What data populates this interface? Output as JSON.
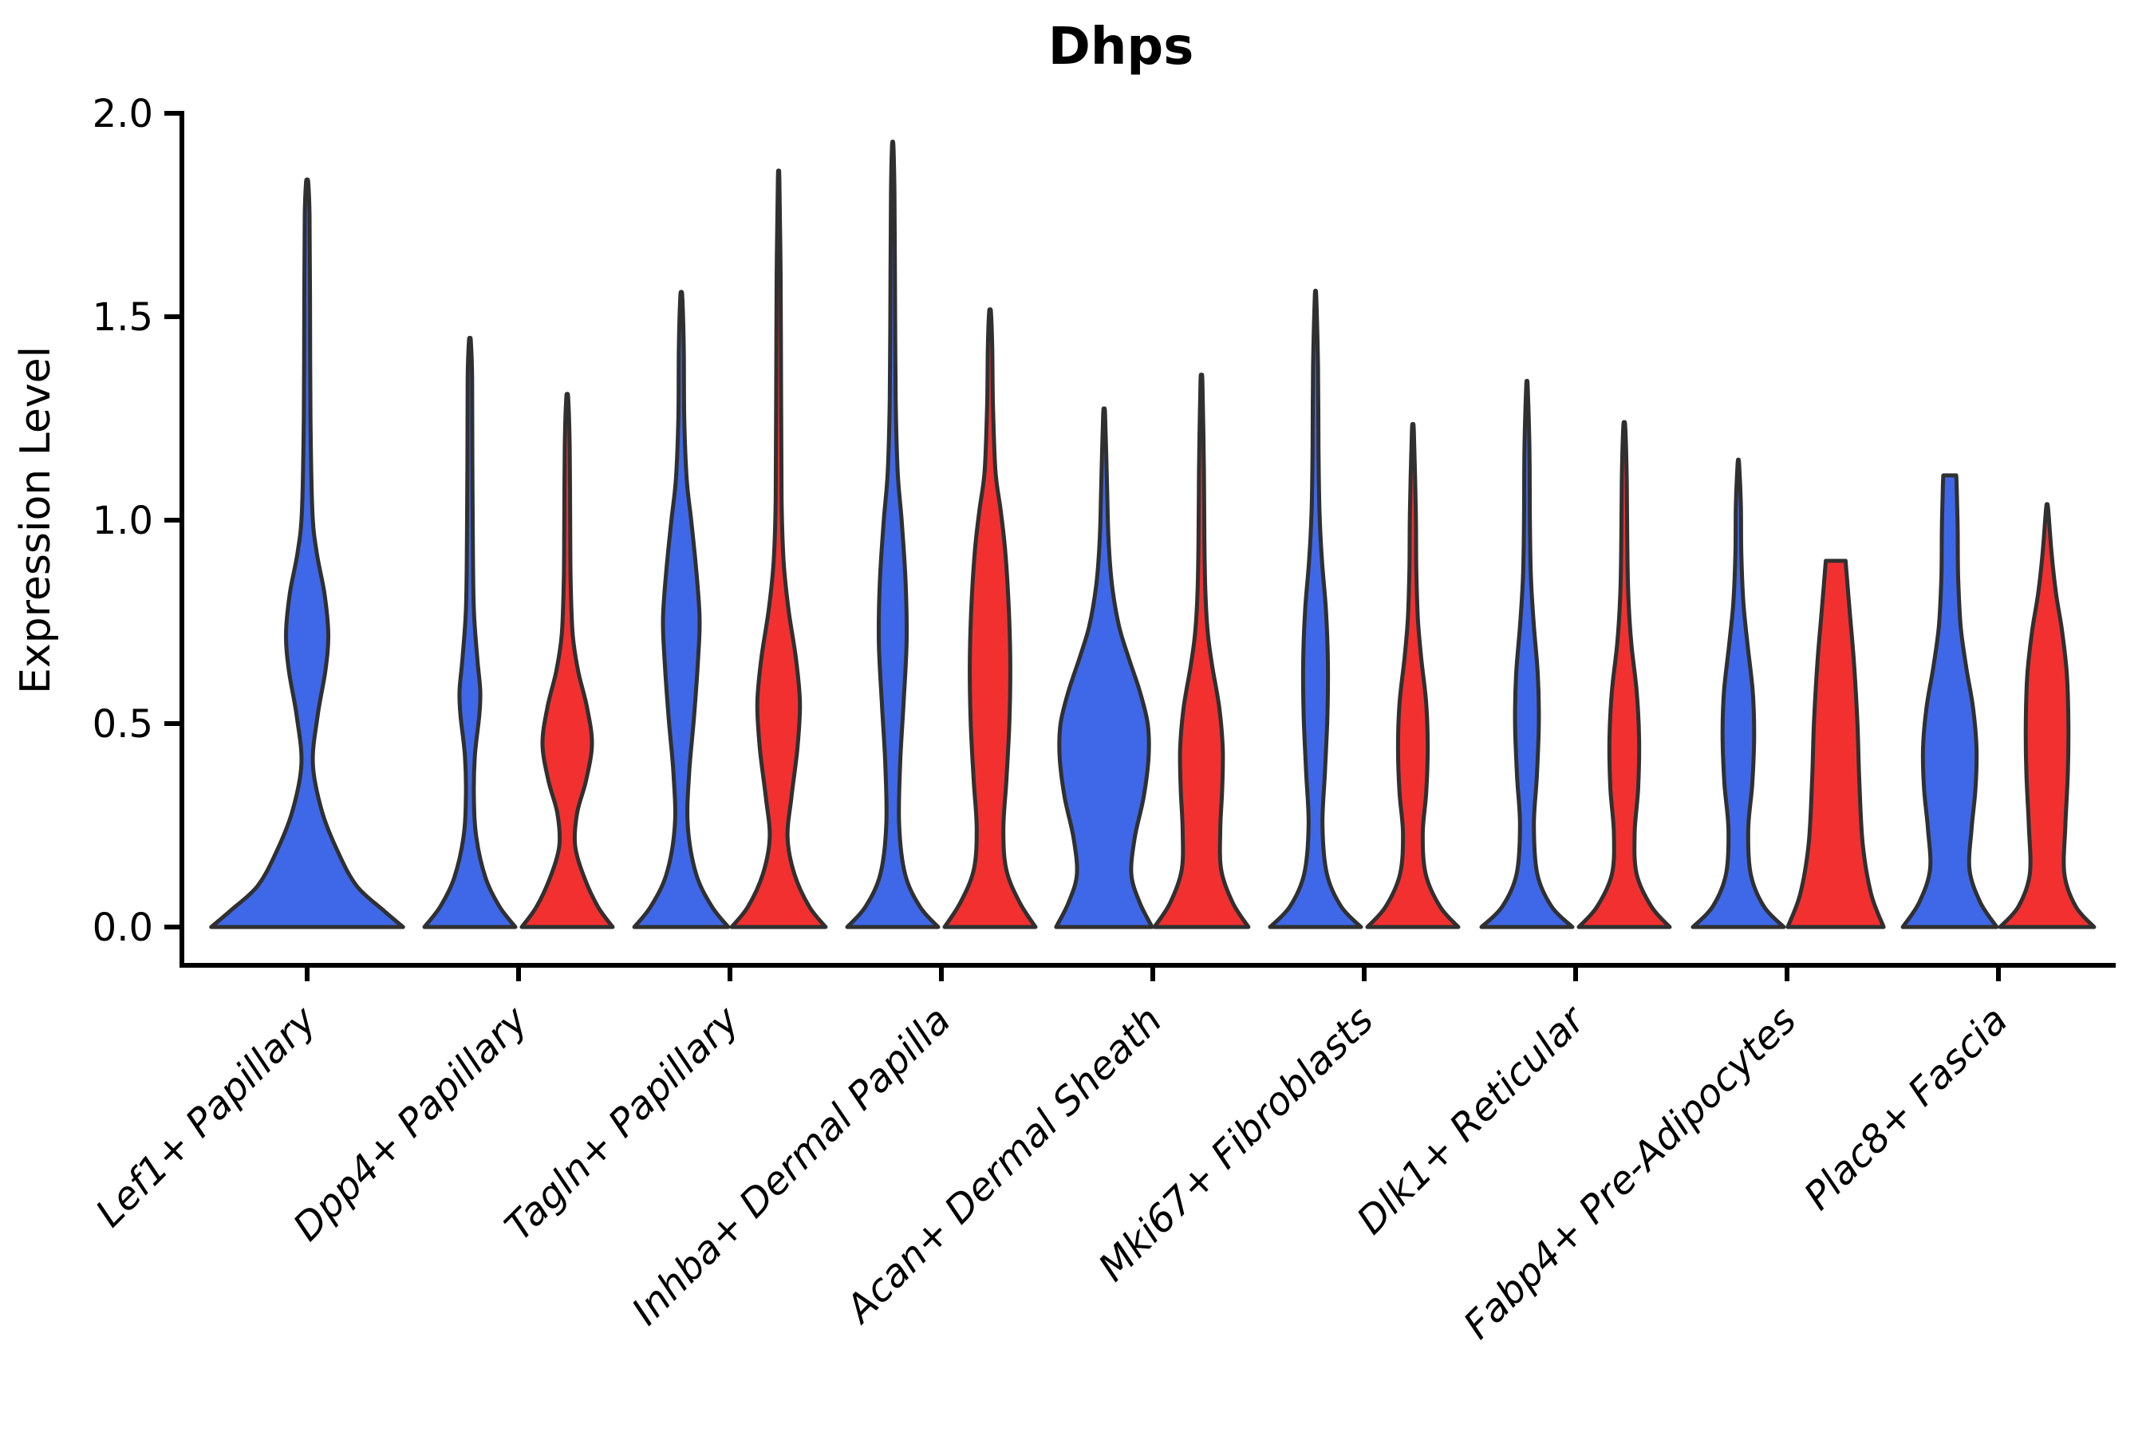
{
  "figure": {
    "background": "#ffffff"
  },
  "chart_data": {
    "type": "violin",
    "title": "Dhps",
    "xlabel": "",
    "ylabel": "Expression Level",
    "ylim": [
      0,
      2.0
    ],
    "yticks": [
      "0.0",
      "0.5",
      "1.0",
      "1.5",
      "2.0"
    ],
    "ytick_values": [
      0.0,
      0.5,
      1.0,
      1.5,
      2.0
    ],
    "grid": "off",
    "legend_position": "none",
    "outline_color": "#303030",
    "series": [
      {
        "id": "blue",
        "color": "#3E68E8"
      },
      {
        "id": "red",
        "color": "#F23030"
      }
    ],
    "categories": [
      "Lef1+ Papillary",
      "Dpp4+ Papillary",
      "Tagln+ Papillary",
      "Inhba+ Dermal Papilla",
      "Acan+ Dermal Sheath",
      "Mki67+ Fibroblasts",
      "Dlk1+ Reticular",
      "Fabp4+ Pre-Adipocytes",
      "Plac8+ Fascia"
    ],
    "violins": [
      {
        "category": "Lef1+ Papillary",
        "series": "blue",
        "max": 1.83,
        "width_scale": 1.94,
        "clipped": false,
        "profile": [
          [
            0.0,
            1.0
          ],
          [
            0.04,
            0.8
          ],
          [
            0.1,
            0.52
          ],
          [
            0.18,
            0.33
          ],
          [
            0.28,
            0.16
          ],
          [
            0.4,
            0.06
          ],
          [
            0.52,
            0.11
          ],
          [
            0.63,
            0.19
          ],
          [
            0.72,
            0.22
          ],
          [
            0.82,
            0.18
          ],
          [
            0.92,
            0.1
          ],
          [
            1.02,
            0.055
          ],
          [
            1.25,
            0.035
          ],
          [
            1.55,
            0.03
          ],
          [
            1.75,
            0.025
          ],
          [
            1.83,
            0.012
          ]
        ]
      },
      {
        "category": "Dpp4+ Papillary",
        "series": "blue",
        "max": 1.44,
        "width_scale": 1.0,
        "clipped": false,
        "profile": [
          [
            0.0,
            0.92
          ],
          [
            0.05,
            0.6
          ],
          [
            0.12,
            0.32
          ],
          [
            0.22,
            0.13
          ],
          [
            0.32,
            0.08
          ],
          [
            0.42,
            0.1
          ],
          [
            0.52,
            0.19
          ],
          [
            0.58,
            0.21
          ],
          [
            0.66,
            0.15
          ],
          [
            0.78,
            0.08
          ],
          [
            0.95,
            0.06
          ],
          [
            1.15,
            0.05
          ],
          [
            1.35,
            0.045
          ],
          [
            1.44,
            0.02
          ]
        ]
      },
      {
        "category": "Dpp4+ Papillary",
        "series": "red",
        "max": 1.3,
        "width_scale": 1.0,
        "clipped": false,
        "profile": [
          [
            0.0,
            0.92
          ],
          [
            0.05,
            0.62
          ],
          [
            0.12,
            0.35
          ],
          [
            0.2,
            0.16
          ],
          [
            0.28,
            0.2
          ],
          [
            0.36,
            0.38
          ],
          [
            0.45,
            0.5
          ],
          [
            0.54,
            0.4
          ],
          [
            0.63,
            0.22
          ],
          [
            0.72,
            0.11
          ],
          [
            0.85,
            0.07
          ],
          [
            1.0,
            0.06
          ],
          [
            1.18,
            0.05
          ],
          [
            1.3,
            0.02
          ]
        ]
      },
      {
        "category": "Tagln+ Papillary",
        "series": "blue",
        "max": 1.55,
        "width_scale": 1.0,
        "clipped": false,
        "profile": [
          [
            0.0,
            0.95
          ],
          [
            0.05,
            0.62
          ],
          [
            0.13,
            0.3
          ],
          [
            0.25,
            0.13
          ],
          [
            0.38,
            0.16
          ],
          [
            0.52,
            0.26
          ],
          [
            0.66,
            0.34
          ],
          [
            0.76,
            0.37
          ],
          [
            0.88,
            0.3
          ],
          [
            1.0,
            0.2
          ],
          [
            1.1,
            0.11
          ],
          [
            1.25,
            0.06
          ],
          [
            1.42,
            0.05
          ],
          [
            1.55,
            0.02
          ]
        ]
      },
      {
        "category": "Tagln+ Papillary",
        "series": "red",
        "max": 1.84,
        "width_scale": 1.0,
        "clipped": false,
        "profile": [
          [
            0.0,
            0.95
          ],
          [
            0.05,
            0.62
          ],
          [
            0.13,
            0.32
          ],
          [
            0.22,
            0.18
          ],
          [
            0.32,
            0.26
          ],
          [
            0.44,
            0.38
          ],
          [
            0.55,
            0.43
          ],
          [
            0.66,
            0.35
          ],
          [
            0.78,
            0.2
          ],
          [
            0.9,
            0.1
          ],
          [
            1.05,
            0.06
          ],
          [
            1.3,
            0.05
          ],
          [
            1.6,
            0.04
          ],
          [
            1.84,
            0.015
          ]
        ]
      },
      {
        "category": "Inhba+ Dermal Papilla",
        "series": "blue",
        "max": 1.92,
        "width_scale": 1.0,
        "clipped": false,
        "profile": [
          [
            0.0,
            0.92
          ],
          [
            0.05,
            0.55
          ],
          [
            0.13,
            0.25
          ],
          [
            0.25,
            0.13
          ],
          [
            0.4,
            0.15
          ],
          [
            0.55,
            0.22
          ],
          [
            0.7,
            0.28
          ],
          [
            0.85,
            0.26
          ],
          [
            1.0,
            0.18
          ],
          [
            1.12,
            0.1
          ],
          [
            1.3,
            0.06
          ],
          [
            1.6,
            0.045
          ],
          [
            1.8,
            0.035
          ],
          [
            1.92,
            0.015
          ]
        ]
      },
      {
        "category": "Inhba+ Dermal Papilla",
        "series": "red",
        "max": 1.51,
        "width_scale": 1.0,
        "clipped": false,
        "profile": [
          [
            0.0,
            0.92
          ],
          [
            0.06,
            0.6
          ],
          [
            0.14,
            0.33
          ],
          [
            0.24,
            0.27
          ],
          [
            0.36,
            0.33
          ],
          [
            0.5,
            0.39
          ],
          [
            0.64,
            0.41
          ],
          [
            0.78,
            0.38
          ],
          [
            0.92,
            0.31
          ],
          [
            1.02,
            0.22
          ],
          [
            1.12,
            0.11
          ],
          [
            1.28,
            0.06
          ],
          [
            1.42,
            0.045
          ],
          [
            1.51,
            0.02
          ]
        ]
      },
      {
        "category": "Acan+ Dermal Sheath",
        "series": "blue",
        "max": 1.26,
        "width_scale": 1.0,
        "clipped": false,
        "profile": [
          [
            0.0,
            0.97
          ],
          [
            0.06,
            0.72
          ],
          [
            0.13,
            0.55
          ],
          [
            0.22,
            0.62
          ],
          [
            0.32,
            0.8
          ],
          [
            0.42,
            0.9
          ],
          [
            0.5,
            0.88
          ],
          [
            0.58,
            0.72
          ],
          [
            0.66,
            0.5
          ],
          [
            0.74,
            0.3
          ],
          [
            0.84,
            0.16
          ],
          [
            0.95,
            0.09
          ],
          [
            1.08,
            0.06
          ],
          [
            1.26,
            0.02
          ]
        ]
      },
      {
        "category": "Acan+ Dermal Sheath",
        "series": "red",
        "max": 1.34,
        "width_scale": 1.0,
        "clipped": false,
        "profile": [
          [
            0.0,
            0.95
          ],
          [
            0.06,
            0.63
          ],
          [
            0.14,
            0.4
          ],
          [
            0.24,
            0.38
          ],
          [
            0.34,
            0.42
          ],
          [
            0.44,
            0.43
          ],
          [
            0.54,
            0.36
          ],
          [
            0.64,
            0.22
          ],
          [
            0.72,
            0.13
          ],
          [
            0.82,
            0.08
          ],
          [
            0.95,
            0.06
          ],
          [
            1.12,
            0.05
          ],
          [
            1.34,
            0.02
          ]
        ]
      },
      {
        "category": "Mki67+ Fibroblasts",
        "series": "blue",
        "max": 1.55,
        "width_scale": 1.0,
        "clipped": false,
        "profile": [
          [
            0.0,
            0.92
          ],
          [
            0.05,
            0.52
          ],
          [
            0.13,
            0.23
          ],
          [
            0.25,
            0.14
          ],
          [
            0.38,
            0.19
          ],
          [
            0.52,
            0.24
          ],
          [
            0.65,
            0.25
          ],
          [
            0.78,
            0.21
          ],
          [
            0.9,
            0.13
          ],
          [
            1.02,
            0.08
          ],
          [
            1.18,
            0.06
          ],
          [
            1.38,
            0.05
          ],
          [
            1.55,
            0.015
          ]
        ]
      },
      {
        "category": "Mki67+ Fibroblasts",
        "series": "red",
        "max": 1.22,
        "width_scale": 1.0,
        "clipped": false,
        "profile": [
          [
            0.0,
            0.92
          ],
          [
            0.05,
            0.55
          ],
          [
            0.13,
            0.26
          ],
          [
            0.23,
            0.2
          ],
          [
            0.33,
            0.27
          ],
          [
            0.44,
            0.3
          ],
          [
            0.55,
            0.27
          ],
          [
            0.66,
            0.17
          ],
          [
            0.76,
            0.1
          ],
          [
            0.88,
            0.07
          ],
          [
            1.02,
            0.06
          ],
          [
            1.22,
            0.02
          ]
        ]
      },
      {
        "category": "Dlk1+ Reticular",
        "series": "blue",
        "max": 1.33,
        "width_scale": 1.0,
        "clipped": false,
        "profile": [
          [
            0.0,
            0.92
          ],
          [
            0.05,
            0.5
          ],
          [
            0.13,
            0.21
          ],
          [
            0.25,
            0.14
          ],
          [
            0.37,
            0.2
          ],
          [
            0.5,
            0.24
          ],
          [
            0.62,
            0.22
          ],
          [
            0.74,
            0.14
          ],
          [
            0.86,
            0.08
          ],
          [
            1.0,
            0.06
          ],
          [
            1.18,
            0.05
          ],
          [
            1.33,
            0.015
          ]
        ]
      },
      {
        "category": "Dlk1+ Reticular",
        "series": "red",
        "max": 1.23,
        "width_scale": 1.0,
        "clipped": false,
        "profile": [
          [
            0.0,
            0.92
          ],
          [
            0.05,
            0.55
          ],
          [
            0.13,
            0.25
          ],
          [
            0.23,
            0.21
          ],
          [
            0.34,
            0.28
          ],
          [
            0.46,
            0.3
          ],
          [
            0.58,
            0.25
          ],
          [
            0.7,
            0.14
          ],
          [
            0.82,
            0.08
          ],
          [
            0.96,
            0.06
          ],
          [
            1.1,
            0.05
          ],
          [
            1.23,
            0.02
          ]
        ]
      },
      {
        "category": "Fabp4+ Pre-Adipocytes",
        "series": "blue",
        "max": 1.14,
        "width_scale": 1.0,
        "clipped": false,
        "profile": [
          [
            0.0,
            0.92
          ],
          [
            0.05,
            0.52
          ],
          [
            0.13,
            0.25
          ],
          [
            0.24,
            0.2
          ],
          [
            0.35,
            0.28
          ],
          [
            0.47,
            0.32
          ],
          [
            0.58,
            0.29
          ],
          [
            0.7,
            0.18
          ],
          [
            0.8,
            0.1
          ],
          [
            0.92,
            0.06
          ],
          [
            1.04,
            0.05
          ],
          [
            1.14,
            0.015
          ]
        ]
      },
      {
        "category": "Fabp4+ Pre-Adipocytes",
        "series": "red",
        "max": 0.9,
        "width_scale": 1.0,
        "clipped": true,
        "profile": [
          [
            0.0,
            0.97
          ],
          [
            0.08,
            0.72
          ],
          [
            0.2,
            0.55
          ],
          [
            0.35,
            0.48
          ],
          [
            0.5,
            0.44
          ],
          [
            0.65,
            0.37
          ],
          [
            0.78,
            0.28
          ],
          [
            0.9,
            0.2
          ]
        ]
      },
      {
        "category": "Plac8+ Fascia",
        "series": "blue",
        "max": 1.11,
        "width_scale": 1.0,
        "clipped": true,
        "profile": [
          [
            0.0,
            0.95
          ],
          [
            0.06,
            0.62
          ],
          [
            0.14,
            0.4
          ],
          [
            0.24,
            0.44
          ],
          [
            0.34,
            0.52
          ],
          [
            0.44,
            0.54
          ],
          [
            0.54,
            0.47
          ],
          [
            0.64,
            0.33
          ],
          [
            0.74,
            0.22
          ],
          [
            0.86,
            0.17
          ],
          [
            0.98,
            0.16
          ],
          [
            1.08,
            0.14
          ],
          [
            1.11,
            0.13
          ]
        ]
      },
      {
        "category": "Plac8+ Fascia",
        "series": "red",
        "max": 1.03,
        "width_scale": 1.0,
        "clipped": false,
        "profile": [
          [
            0.0,
            0.95
          ],
          [
            0.05,
            0.58
          ],
          [
            0.13,
            0.35
          ],
          [
            0.25,
            0.37
          ],
          [
            0.38,
            0.42
          ],
          [
            0.5,
            0.43
          ],
          [
            0.62,
            0.4
          ],
          [
            0.73,
            0.3
          ],
          [
            0.82,
            0.18
          ],
          [
            0.92,
            0.09
          ],
          [
            1.03,
            0.02
          ]
        ]
      }
    ]
  }
}
